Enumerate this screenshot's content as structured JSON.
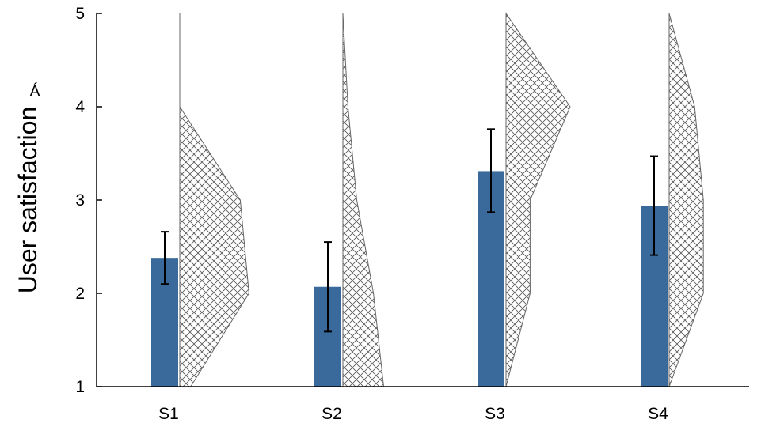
{
  "chart_data": {
    "type": "bar",
    "categories": [
      "S1",
      "S2",
      "S3",
      "S4"
    ],
    "ylabel": "User satisfaction",
    "ylabel_mark": "Á",
    "ylim": [
      1,
      5
    ],
    "yticks": [
      1,
      2,
      3,
      4,
      5
    ],
    "grid": false,
    "series": [
      {
        "values": [
          2.38,
          2.07,
          3.31,
          2.94
        ],
        "error_low": [
          2.1,
          1.59,
          2.87,
          2.41
        ],
        "error_high": [
          2.66,
          2.55,
          3.76,
          3.47
        ],
        "color": "#3a6a9b"
      }
    ],
    "distributions": [
      {
        "category": "S1",
        "profile": [
          [
            1,
            0.15
          ],
          [
            2,
            0.95
          ],
          [
            3,
            0.83
          ],
          [
            4,
            0.0
          ],
          [
            5,
            0.0
          ]
        ]
      },
      {
        "category": "S2",
        "profile": [
          [
            1,
            0.56
          ],
          [
            2,
            0.42
          ],
          [
            3,
            0.19
          ],
          [
            4,
            0.07
          ],
          [
            5,
            0.0
          ]
        ]
      },
      {
        "category": "S3",
        "profile": [
          [
            1,
            0.0
          ],
          [
            2,
            0.33
          ],
          [
            3,
            0.33
          ],
          [
            4,
            0.88
          ],
          [
            5,
            0.0
          ]
        ]
      },
      {
        "category": "S4",
        "profile": [
          [
            1,
            0.0
          ],
          [
            2,
            0.47
          ],
          [
            3,
            0.47
          ],
          [
            4,
            0.35
          ],
          [
            5,
            0.0
          ]
        ]
      }
    ],
    "colors": {
      "bar": "#3a6a9b",
      "hatch": "#555555",
      "axis": "#000000"
    }
  }
}
